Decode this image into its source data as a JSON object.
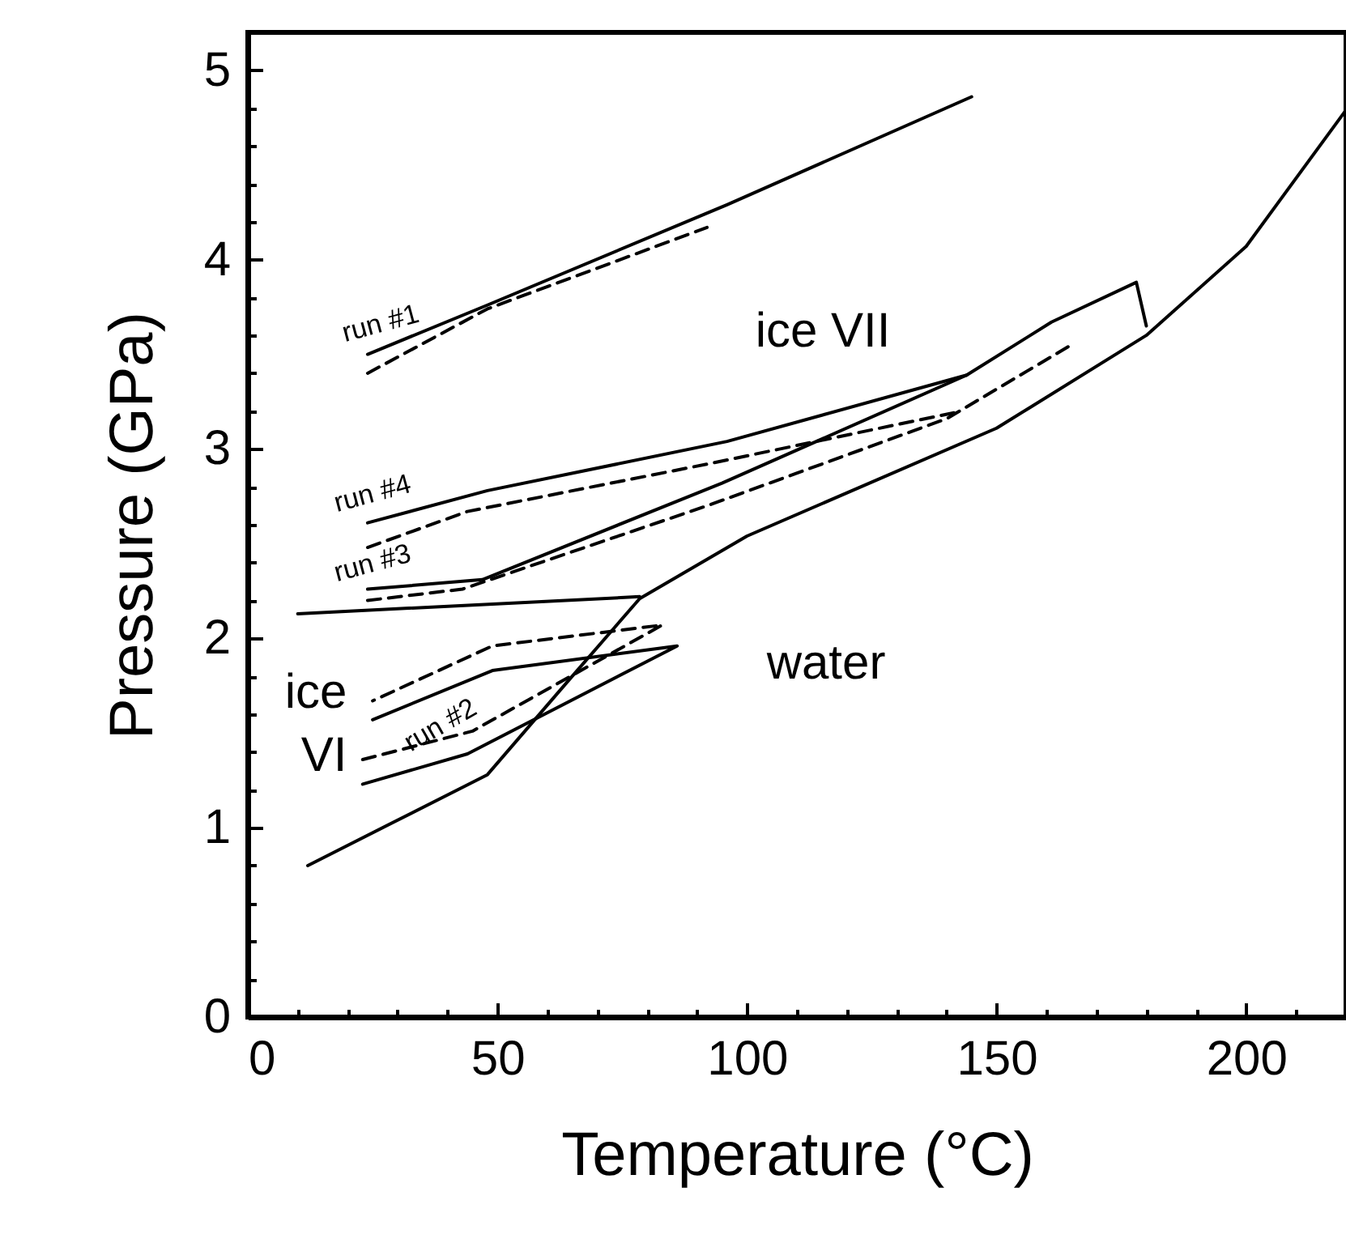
{
  "chart_data": {
    "type": "line",
    "xlabel": "Temperature (°C)",
    "ylabel": "Pressure (GPa)",
    "xlim": [
      0,
      220
    ],
    "ylim": [
      0,
      5.2
    ],
    "xticks": [
      0,
      {
        "value": 10,
        "label": null
      },
      {
        "value": 20,
        "label": null
      },
      {
        "value": 30,
        "label": null
      },
      {
        "value": 40,
        "label": null
      },
      50,
      {
        "value": 60,
        "label": null
      },
      {
        "value": 70,
        "label": null
      },
      {
        "value": 80,
        "label": null
      },
      {
        "value": 90,
        "label": null
      },
      100,
      {
        "value": 110,
        "label": null
      },
      {
        "value": 120,
        "label": null
      },
      {
        "value": 130,
        "label": null
      },
      {
        "value": 140,
        "label": null
      },
      150,
      {
        "value": 160,
        "label": null
      },
      {
        "value": 170,
        "label": null
      },
      {
        "value": 180,
        "label": null
      },
      {
        "value": 190,
        "label": null
      },
      200,
      {
        "value": 210,
        "label": null
      }
    ],
    "yticks": [
      0,
      {
        "value": 0.2,
        "label": null
      },
      {
        "value": 0.4,
        "label": null
      },
      {
        "value": 0.6,
        "label": null
      },
      {
        "value": 0.8,
        "label": null
      },
      1,
      {
        "value": 1.2,
        "label": null
      },
      {
        "value": 1.4,
        "label": null
      },
      {
        "value": 1.6,
        "label": null
      },
      {
        "value": 1.8,
        "label": null
      },
      2,
      {
        "value": 2.2,
        "label": null
      },
      {
        "value": 2.4,
        "label": null
      },
      {
        "value": 2.6,
        "label": null
      },
      {
        "value": 2.8,
        "label": null
      },
      3,
      {
        "value": 3.2,
        "label": null
      },
      {
        "value": 3.4,
        "label": null
      },
      {
        "value": 3.6,
        "label": null
      },
      {
        "value": 3.8,
        "label": null
      },
      4,
      {
        "value": 4.2,
        "label": null
      },
      {
        "value": 4.4,
        "label": null
      },
      {
        "value": 4.6,
        "label": null
      },
      {
        "value": 4.8,
        "label": null
      },
      5
    ],
    "grid": false,
    "marker": "none",
    "series": [
      {
        "color": "#000000",
        "line_style": "solid",
        "x": [
          12,
          48,
          64,
          78.5,
          100,
          150,
          180,
          200,
          220
        ],
        "values": [
          0.8,
          1.28,
          1.77,
          2.21,
          2.54,
          3.11,
          3.6,
          4.07,
          4.79
        ]
      },
      {
        "color": "#000000",
        "line_style": "solid",
        "x": [
          10,
          78.5
        ],
        "values": [
          2.13,
          2.22
        ]
      },
      {
        "color": "#000000",
        "line_style": "solid",
        "x": [
          24,
          48,
          96,
          145
        ],
        "values": [
          3.5,
          3.76,
          4.29,
          4.86
        ]
      },
      {
        "color": "#000000",
        "line_style": "dashed",
        "x": [
          24,
          48,
          92
        ],
        "values": [
          3.4,
          3.74,
          4.17
        ]
      },
      {
        "color": "#000000",
        "line_style": "solid",
        "x": [
          24,
          48,
          96,
          144
        ],
        "values": [
          2.61,
          2.78,
          3.04,
          3.39
        ]
      },
      {
        "color": "#000000",
        "line_style": "dashed",
        "x": [
          24,
          44,
          92,
          143
        ],
        "values": [
          2.48,
          2.67,
          2.92,
          3.2
        ]
      },
      {
        "color": "#000000",
        "line_style": "solid",
        "x": [
          24,
          47,
          95,
          144,
          161,
          178,
          180
        ],
        "values": [
          2.26,
          2.31,
          2.82,
          3.39,
          3.67,
          3.88,
          3.65
        ]
      },
      {
        "color": "#000000",
        "line_style": "dashed",
        "x": [
          24,
          43,
          92,
          140,
          165
        ],
        "values": [
          2.2,
          2.26,
          2.7,
          3.16,
          3.55
        ]
      },
      {
        "color": "#000000",
        "line_style": "solid",
        "x": [
          23,
          44,
          86,
          49,
          25
        ],
        "values": [
          1.23,
          1.39,
          1.96,
          1.83,
          1.57
        ]
      },
      {
        "color": "#000000",
        "line_style": "dashed",
        "x": [
          23,
          45,
          83,
          49,
          25
        ],
        "values": [
          1.36,
          1.51,
          2.07,
          1.96,
          1.67
        ]
      }
    ],
    "annotations": [
      "run #1",
      "run #4",
      "run #3",
      "run #2",
      "ice",
      "VI",
      "ice VII",
      "water"
    ]
  }
}
